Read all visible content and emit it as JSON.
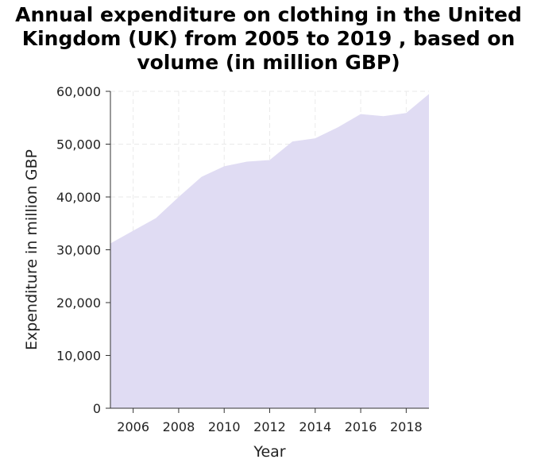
{
  "chart_data": {
    "type": "area",
    "title_lines": [
      "Annual expenditure on clothing in the United",
      "Kingdom (UK) from 2005 to 2019 , based on",
      "volume (in million GBP)"
    ],
    "xlabel": "Year",
    "ylabel": "Expenditure in million GBP",
    "x": [
      2005,
      2006,
      2007,
      2008,
      2009,
      2010,
      2011,
      2012,
      2013,
      2014,
      2015,
      2016,
      2017,
      2018,
      2019
    ],
    "values": [
      31200,
      33600,
      36000,
      40000,
      43800,
      45800,
      46700,
      47000,
      50500,
      51100,
      53200,
      55700,
      55300,
      55900,
      59500
    ],
    "xlim": [
      2005,
      2019
    ],
    "ylim": [
      0,
      60000
    ],
    "x_ticks": [
      2006,
      2008,
      2010,
      2012,
      2014,
      2016,
      2018
    ],
    "x_tick_labels": [
      "2006",
      "2008",
      "2010",
      "2012",
      "2014",
      "2016",
      "2018"
    ],
    "y_ticks": [
      0,
      10000,
      20000,
      30000,
      40000,
      50000,
      60000
    ],
    "y_tick_labels": [
      "0",
      "10,000",
      "20,000",
      "30,000",
      "40,000",
      "50,000",
      "60,000"
    ],
    "grid": true,
    "fill_color": "#e0dcf3"
  }
}
